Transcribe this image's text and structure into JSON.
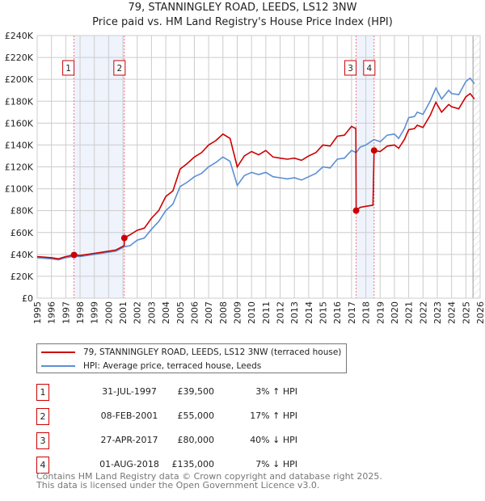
{
  "chart_data": {
    "type": "line",
    "title": "79, STANNINGLEY ROAD, LEEDS, LS12 3NW",
    "subtitle": "Price paid vs. HM Land Registry's House Price Index (HPI)",
    "xlim": [
      1995,
      2026
    ],
    "ylim": [
      0,
      240000
    ],
    "x_ticks": [
      "1995",
      "1996",
      "1997",
      "1998",
      "1999",
      "2000",
      "2001",
      "2002",
      "2003",
      "2004",
      "2005",
      "2006",
      "2007",
      "2008",
      "2009",
      "2010",
      "2011",
      "2012",
      "2013",
      "2014",
      "2015",
      "2016",
      "2017",
      "2018",
      "2019",
      "2020",
      "2021",
      "2022",
      "2023",
      "2024",
      "2025",
      "2026"
    ],
    "y_ticks": [
      {
        "v": 0,
        "l": "£0"
      },
      {
        "v": 20000,
        "l": "£20K"
      },
      {
        "v": 40000,
        "l": "£40K"
      },
      {
        "v": 60000,
        "l": "£60K"
      },
      {
        "v": 80000,
        "l": "£80K"
      },
      {
        "v": 100000,
        "l": "£100K"
      },
      {
        "v": 120000,
        "l": "£120K"
      },
      {
        "v": 140000,
        "l": "£140K"
      },
      {
        "v": 160000,
        "l": "£160K"
      },
      {
        "v": 180000,
        "l": "£180K"
      },
      {
        "v": 200000,
        "l": "£200K"
      },
      {
        "v": 220000,
        "l": "£220K"
      },
      {
        "v": 240000,
        "l": "£240K"
      }
    ],
    "grid": true,
    "shaded_ranges": [
      [
        1997.58,
        2001.1
      ],
      [
        2017.32,
        2018.58
      ]
    ],
    "forecast_from": 2025.5,
    "series": [
      {
        "name": "79, STANNINGLEY ROAD, LEEDS, LS12 3NW (terraced house)",
        "color": "#cc0000",
        "x": [
          1995,
          1996,
          1996.5,
          1997,
          1997.58,
          1998,
          1999,
          2000,
          2000.5,
          2001.09,
          2001.1,
          2001.5,
          2002,
          2002.5,
          2003,
          2003.5,
          2004,
          2004.5,
          2005,
          2005.5,
          2006,
          2006.5,
          2007,
          2007.5,
          2008,
          2008.5,
          2009,
          2009.5,
          2010,
          2010.5,
          2011,
          2011.5,
          2012,
          2012.5,
          2013,
          2013.5,
          2014,
          2014.5,
          2015,
          2015.5,
          2016,
          2016.5,
          2017,
          2017.3,
          2017.32,
          2017.6,
          2018,
          2018.5,
          2018.58,
          2019,
          2019.5,
          2020,
          2020.3,
          2020.7,
          2021,
          2021.4,
          2021.6,
          2022,
          2022.5,
          2022.9,
          2023.3,
          2023.8,
          2024,
          2024.5,
          2025,
          2025.3,
          2025.6
        ],
        "y": [
          38,
          37,
          36,
          38,
          39.5,
          39,
          41,
          43,
          44,
          48,
          55,
          58,
          62,
          64,
          73,
          80,
          93,
          98,
          118,
          123,
          129,
          133,
          140,
          144,
          150,
          146,
          120,
          130,
          134,
          131,
          135,
          129,
          128,
          127,
          128,
          126,
          130,
          133,
          140,
          139,
          148,
          149,
          157,
          155,
          80,
          83,
          84,
          85,
          135,
          134,
          139,
          140,
          137,
          145,
          154,
          155,
          158,
          156,
          167,
          179,
          170,
          177,
          175,
          173,
          184,
          187,
          182
        ]
      },
      {
        "name": "HPI: Average price, terraced house, Leeds",
        "color": "#5b8fd4",
        "x": [
          1995,
          1996,
          1996.5,
          1997,
          1997.58,
          1998,
          1999,
          2000,
          2000.5,
          2001.1,
          2001.5,
          2002,
          2002.5,
          2003,
          2003.5,
          2004,
          2004.5,
          2005,
          2005.5,
          2006,
          2006.5,
          2007,
          2007.5,
          2008,
          2008.5,
          2009,
          2009.5,
          2010,
          2010.5,
          2011,
          2011.5,
          2012,
          2012.5,
          2013,
          2013.5,
          2014,
          2014.5,
          2015,
          2015.5,
          2016,
          2016.5,
          2017,
          2017.32,
          2017.6,
          2018,
          2018.58,
          2019,
          2019.5,
          2020,
          2020.3,
          2020.7,
          2021,
          2021.4,
          2021.6,
          2022,
          2022.5,
          2022.9,
          2023.3,
          2023.8,
          2024,
          2024.5,
          2025,
          2025.3,
          2025.6
        ],
        "y": [
          37,
          36,
          35,
          37,
          38.3,
          38,
          40,
          42,
          43,
          47,
          48,
          53,
          55,
          63,
          70,
          80,
          86,
          102,
          106,
          111,
          114,
          120,
          124,
          129,
          125,
          103,
          112,
          115,
          113,
          115,
          111,
          110,
          109,
          110,
          108,
          111,
          114,
          120,
          119,
          127,
          128,
          135,
          133,
          138,
          140,
          145,
          143,
          149,
          150,
          146,
          155,
          165,
          166,
          170,
          168,
          180,
          192,
          182,
          190,
          187,
          186,
          198,
          201,
          196
        ]
      }
    ],
    "y_unit": "thousands GBP",
    "sales": [
      {
        "n": "1",
        "x": 1997.58,
        "y": 39.5,
        "date": "31-JUL-1997",
        "price": "£39,500",
        "hpi": "3% ↑ HPI"
      },
      {
        "n": "2",
        "x": 2001.1,
        "y": 55,
        "date": "08-FEB-2001",
        "price": "£55,000",
        "hpi": "17% ↑ HPI"
      },
      {
        "n": "3",
        "x": 2017.32,
        "y": 80,
        "date": "27-APR-2017",
        "price": "£80,000",
        "hpi": "40% ↓ HPI"
      },
      {
        "n": "4",
        "x": 2018.58,
        "y": 135,
        "date": "01-AUG-2018",
        "price": "£135,000",
        "hpi": "7% ↓ HPI"
      }
    ]
  },
  "footer": [
    "Contains HM Land Registry data © Crown copyright and database right 2025.",
    "This data is licensed under the Open Government Licence v3.0."
  ]
}
